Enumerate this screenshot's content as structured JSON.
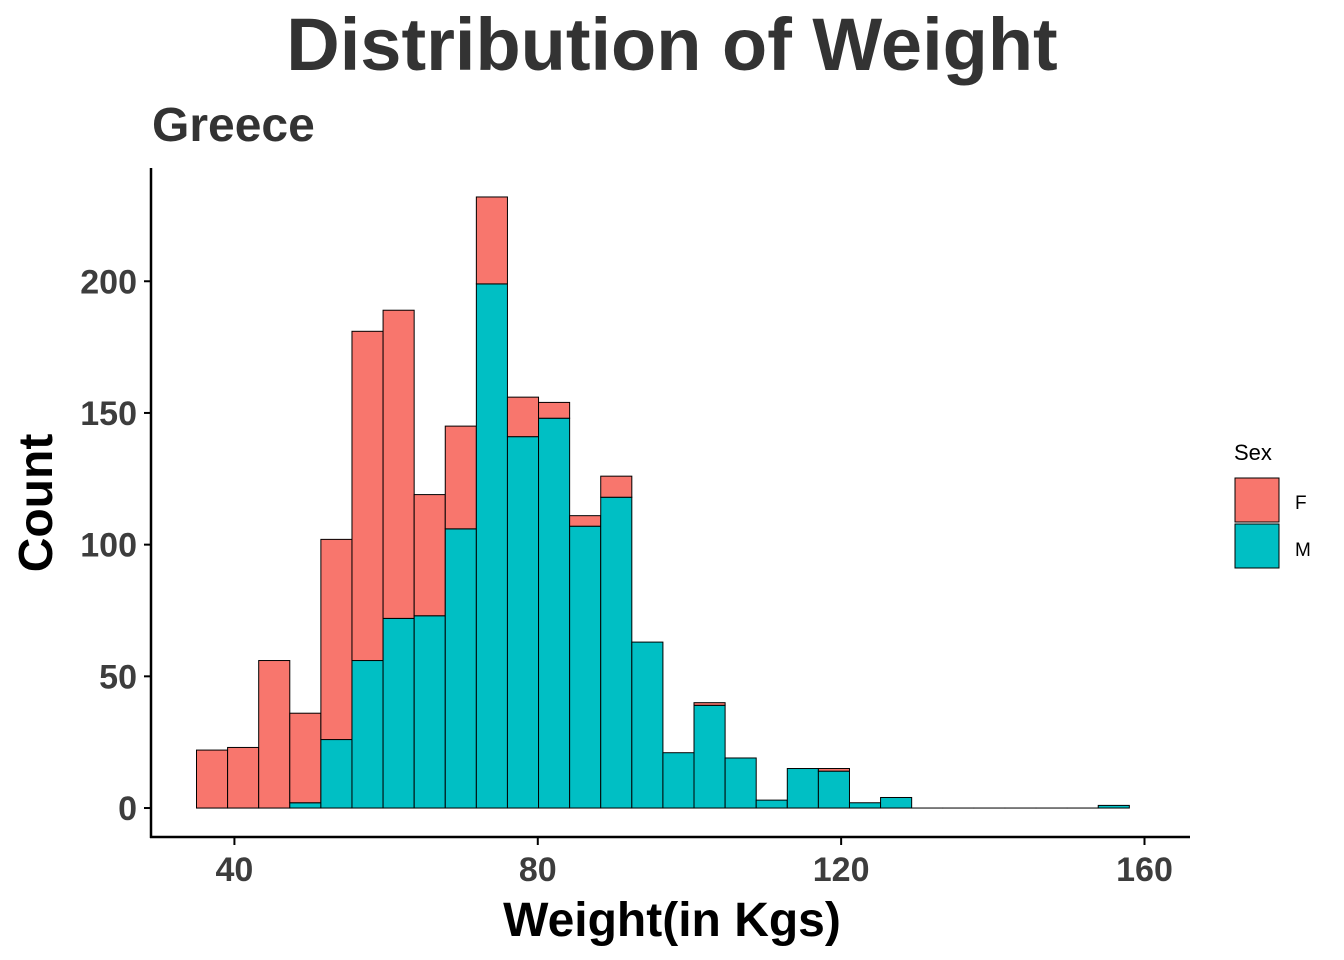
{
  "chart_data": {
    "type": "bar",
    "stacked": true,
    "title": "Distribution of Weight",
    "subtitle": "Greece",
    "xlabel": "Weight(in Kgs)",
    "ylabel": "Count",
    "xlim": [
      29,
      166
    ],
    "ylim": [
      -11,
      243
    ],
    "x_ticks": [
      40,
      80,
      120,
      160
    ],
    "y_ticks": [
      0,
      50,
      100,
      150,
      200
    ],
    "bin_width": 4.1,
    "bin_start": 35.0,
    "grid": false,
    "legend": {
      "title": "Sex",
      "placement": "right",
      "entries": [
        "F",
        "M"
      ]
    },
    "colors": {
      "F": "#F8766D",
      "M": "#00BFC4",
      "outline": "#000000",
      "text_dark": "#333333"
    },
    "series": [
      {
        "name": "M",
        "values": [
          0,
          0,
          0,
          2,
          26,
          56,
          72,
          73,
          106,
          199,
          141,
          148,
          107,
          118,
          63,
          21,
          39,
          19,
          3,
          15,
          14,
          2,
          4,
          0,
          0,
          0,
          0,
          0,
          0,
          1
        ]
      },
      {
        "name": "F",
        "values": [
          22,
          23,
          56,
          34,
          76,
          125,
          117,
          46,
          39,
          33,
          15,
          6,
          4,
          8,
          0,
          0,
          1,
          0,
          0,
          0,
          1,
          0,
          0,
          0,
          0,
          0,
          0,
          0,
          0,
          0
        ]
      }
    ]
  }
}
